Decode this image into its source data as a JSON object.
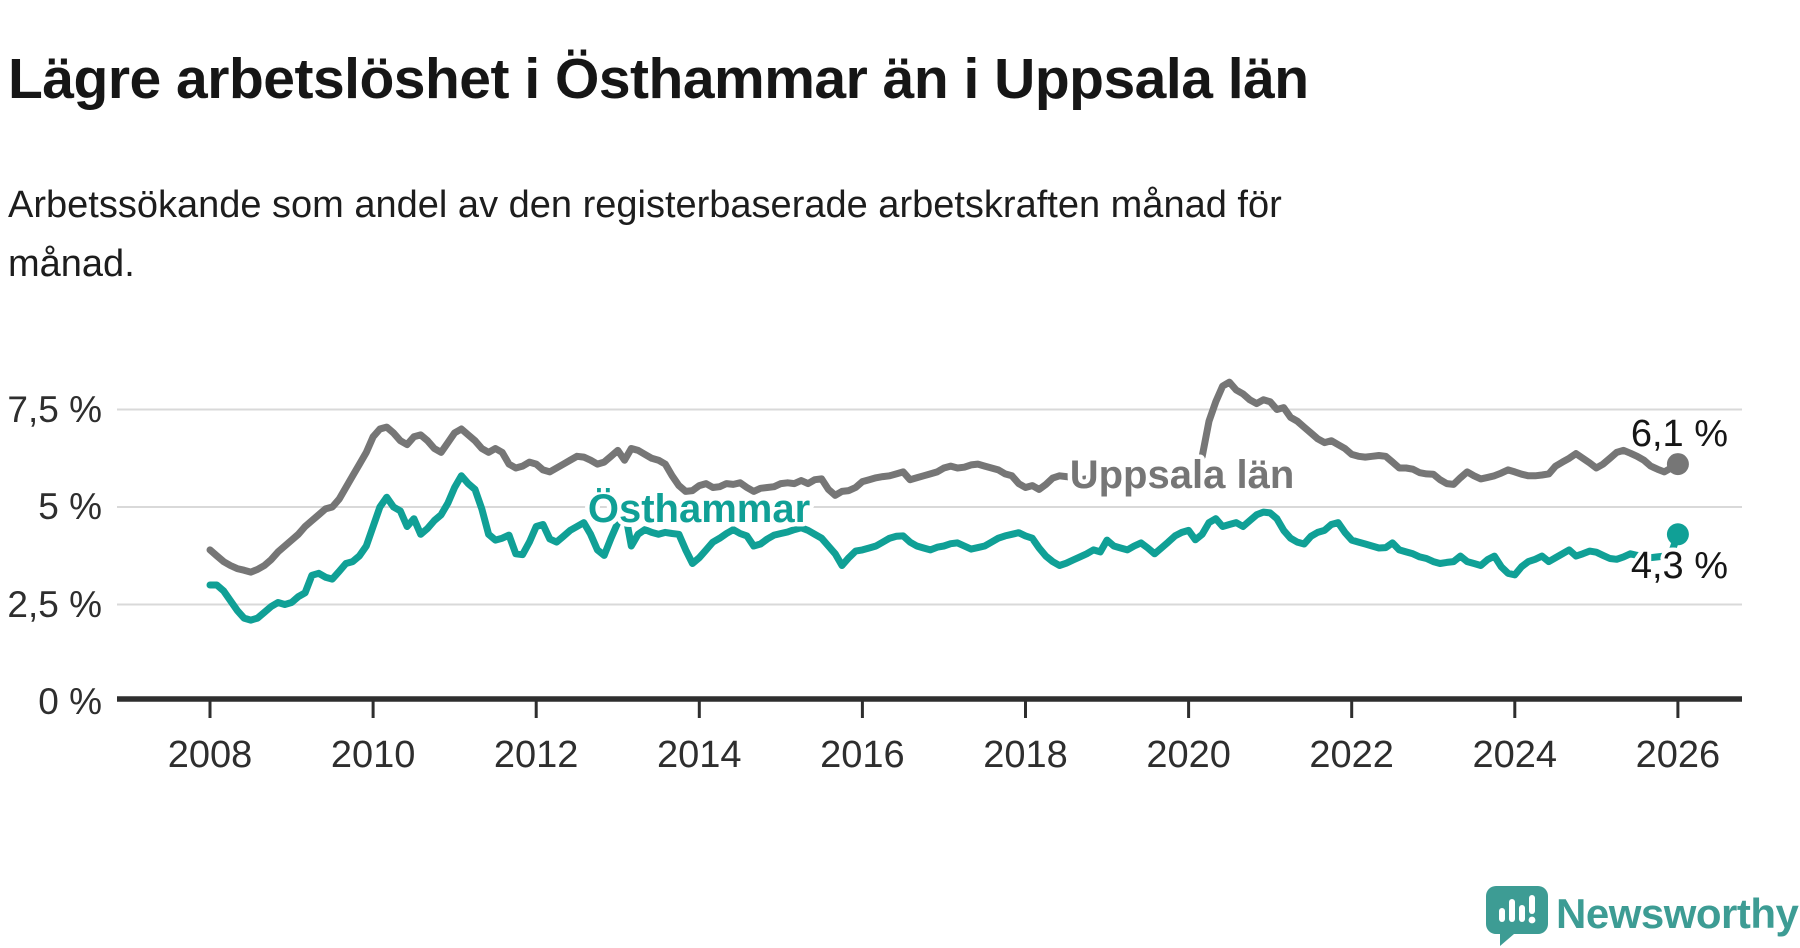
{
  "header": {
    "title": "Lägre arbetslöshet i Östhammar än i Uppsala län",
    "subtitle": "Arbetssökande som andel av den registerbaserade arbetskraften månad för månad."
  },
  "chart_data": {
    "type": "line",
    "title": "Lägre arbetslöshet i Östhammar än i Uppsala län",
    "xlabel": "",
    "ylabel": "",
    "x_start": "2008-01",
    "x_end": "2026-01",
    "x_step_months": 1,
    "ylim": [
      0,
      8.5
    ],
    "grid": "horizontal",
    "legend_position": "inline-labels",
    "y_ticks": [
      {
        "value": 7.5,
        "label": "7,5 %"
      },
      {
        "value": 5,
        "label": "5 %"
      },
      {
        "value": 2.5,
        "label": "2,5 %"
      },
      {
        "value": 0,
        "label": "0 %"
      }
    ],
    "x_ticks": [
      {
        "year": 2008,
        "label": "2008"
      },
      {
        "year": 2010,
        "label": "2010"
      },
      {
        "year": 2012,
        "label": "2012"
      },
      {
        "year": 2014,
        "label": "2014"
      },
      {
        "year": 2016,
        "label": "2016"
      },
      {
        "year": 2018,
        "label": "2018"
      },
      {
        "year": 2020,
        "label": "2020"
      },
      {
        "year": 2022,
        "label": "2022"
      },
      {
        "year": 2024,
        "label": "2024"
      },
      {
        "year": 2026,
        "label": "2026"
      }
    ],
    "series": [
      {
        "name": "Uppsala län",
        "color": "#767676",
        "end_label": "6,1 %",
        "end_value": 6.1,
        "values": [
          3.9,
          3.75,
          3.6,
          3.5,
          3.42,
          3.38,
          3.33,
          3.4,
          3.5,
          3.65,
          3.85,
          4.0,
          4.15,
          4.3,
          4.5,
          4.65,
          4.8,
          4.95,
          5.0,
          5.2,
          5.5,
          5.8,
          6.1,
          6.4,
          6.8,
          7.0,
          7.05,
          6.9,
          6.7,
          6.6,
          6.8,
          6.85,
          6.7,
          6.5,
          6.4,
          6.65,
          6.9,
          7.0,
          6.85,
          6.7,
          6.5,
          6.4,
          6.5,
          6.4,
          6.1,
          6.0,
          6.05,
          6.15,
          6.1,
          5.95,
          5.9,
          6.0,
          6.1,
          6.2,
          6.3,
          6.28,
          6.2,
          6.1,
          6.15,
          6.3,
          6.45,
          6.2,
          6.5,
          6.45,
          6.35,
          6.25,
          6.2,
          6.1,
          5.8,
          5.55,
          5.4,
          5.42,
          5.55,
          5.6,
          5.5,
          5.52,
          5.6,
          5.58,
          5.62,
          5.5,
          5.4,
          5.48,
          5.5,
          5.52,
          5.6,
          5.62,
          5.6,
          5.68,
          5.6,
          5.7,
          5.72,
          5.45,
          5.3,
          5.4,
          5.42,
          5.5,
          5.65,
          5.7,
          5.75,
          5.78,
          5.8,
          5.85,
          5.9,
          5.7,
          5.75,
          5.8,
          5.85,
          5.9,
          6.0,
          6.05,
          6.0,
          6.02,
          6.08,
          6.1,
          6.05,
          6.0,
          5.95,
          5.85,
          5.8,
          5.6,
          5.5,
          5.55,
          5.45,
          5.58,
          5.74,
          5.8,
          5.78,
          5.75,
          5.7,
          5.72,
          5.78,
          5.82,
          5.85,
          5.88,
          5.84,
          5.86,
          5.9,
          5.92,
          5.9,
          5.87,
          5.85,
          5.9,
          5.95,
          5.92,
          5.95,
          6.0,
          6.3,
          7.2,
          7.7,
          8.1,
          8.2,
          8.0,
          7.9,
          7.75,
          7.65,
          7.75,
          7.7,
          7.5,
          7.55,
          7.3,
          7.2,
          7.05,
          6.9,
          6.75,
          6.65,
          6.7,
          6.6,
          6.5,
          6.35,
          6.3,
          6.28,
          6.3,
          6.32,
          6.3,
          6.15,
          6.0,
          6.0,
          5.97,
          5.88,
          5.85,
          5.84,
          5.7,
          5.6,
          5.58,
          5.75,
          5.9,
          5.8,
          5.72,
          5.76,
          5.8,
          5.87,
          5.95,
          5.9,
          5.84,
          5.8,
          5.8,
          5.82,
          5.85,
          6.05,
          6.15,
          6.25,
          6.37,
          6.25,
          6.13,
          6.0,
          6.1,
          6.25,
          6.4,
          6.45,
          6.38,
          6.3,
          6.2,
          6.05,
          5.97,
          5.9,
          6.0,
          6.1
        ]
      },
      {
        "name": "Östhammar",
        "color": "#10a096",
        "end_label": "4,3 %",
        "end_value": 4.3,
        "values": [
          3.0,
          3.0,
          2.85,
          2.6,
          2.35,
          2.15,
          2.1,
          2.15,
          2.3,
          2.45,
          2.55,
          2.5,
          2.55,
          2.7,
          2.8,
          3.25,
          3.3,
          3.2,
          3.15,
          3.35,
          3.55,
          3.6,
          3.75,
          4.0,
          4.5,
          5.0,
          5.25,
          5.0,
          4.9,
          4.5,
          4.7,
          4.3,
          4.45,
          4.65,
          4.8,
          5.1,
          5.5,
          5.8,
          5.6,
          5.45,
          4.95,
          4.3,
          4.15,
          4.2,
          4.28,
          3.8,
          3.78,
          4.1,
          4.5,
          4.55,
          4.18,
          4.1,
          4.25,
          4.4,
          4.5,
          4.6,
          4.3,
          3.9,
          3.76,
          4.2,
          4.6,
          4.95,
          4.0,
          4.3,
          4.42,
          4.35,
          4.3,
          4.35,
          4.32,
          4.3,
          3.9,
          3.55,
          3.7,
          3.9,
          4.1,
          4.2,
          4.32,
          4.42,
          4.32,
          4.26,
          4.0,
          4.05,
          4.18,
          4.28,
          4.32,
          4.36,
          4.42,
          4.47,
          4.4,
          4.3,
          4.2,
          4.0,
          3.8,
          3.5,
          3.7,
          3.87,
          3.9,
          3.95,
          4.0,
          4.1,
          4.2,
          4.25,
          4.26,
          4.1,
          4.0,
          3.95,
          3.9,
          3.97,
          4.0,
          4.06,
          4.08,
          4.0,
          3.92,
          3.96,
          4.0,
          4.1,
          4.2,
          4.26,
          4.3,
          4.34,
          4.26,
          4.2,
          3.95,
          3.74,
          3.6,
          3.5,
          3.56,
          3.64,
          3.72,
          3.8,
          3.9,
          3.85,
          4.15,
          4.0,
          3.95,
          3.9,
          4.0,
          4.08,
          3.95,
          3.8,
          3.95,
          4.1,
          4.26,
          4.35,
          4.4,
          4.16,
          4.3,
          4.6,
          4.7,
          4.5,
          4.55,
          4.6,
          4.5,
          4.65,
          4.8,
          4.87,
          4.85,
          4.7,
          4.4,
          4.2,
          4.1,
          4.05,
          4.25,
          4.35,
          4.4,
          4.55,
          4.6,
          4.35,
          4.15,
          4.1,
          4.05,
          4.0,
          3.95,
          3.96,
          4.08,
          3.9,
          3.85,
          3.8,
          3.72,
          3.68,
          3.6,
          3.55,
          3.58,
          3.6,
          3.74,
          3.6,
          3.55,
          3.5,
          3.65,
          3.74,
          3.47,
          3.3,
          3.26,
          3.47,
          3.6,
          3.66,
          3.74,
          3.6,
          3.7,
          3.8,
          3.9,
          3.74,
          3.8,
          3.87,
          3.84,
          3.76,
          3.68,
          3.66,
          3.72,
          3.8,
          3.76,
          3.74,
          3.7,
          3.72,
          3.74,
          3.8,
          4.3
        ]
      }
    ]
  },
  "colors": {
    "accent_teal": "#10a096",
    "series_gray": "#767676",
    "gridline": "#d9d9d9",
    "axis": "#2e2e2e",
    "text_dark": "#161616",
    "brand_teal": "#3d9c94"
  },
  "footer": {
    "brand": "Newsworthy"
  }
}
